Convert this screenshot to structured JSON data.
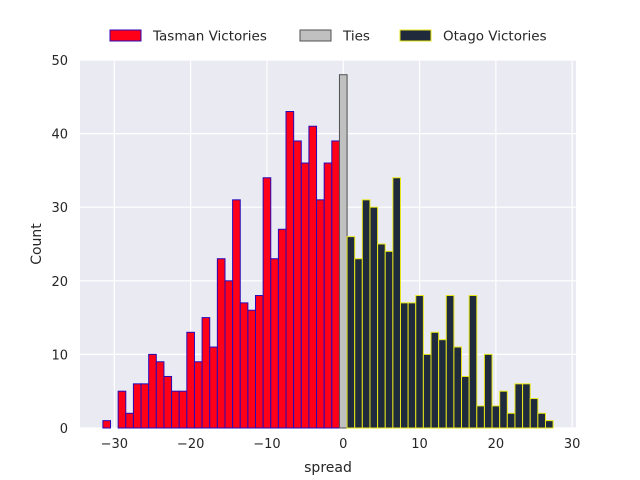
{
  "chart_data": {
    "type": "bar",
    "title": "",
    "xlabel": "spread",
    "ylabel": "Count",
    "xlim": [
      -34.5,
      30.5
    ],
    "ylim": [
      0,
      50
    ],
    "x_ticks": [
      -30,
      -20,
      -10,
      0,
      10,
      20,
      30
    ],
    "y_ticks": [
      0,
      10,
      20,
      30,
      40,
      50
    ],
    "grid": true,
    "legend": {
      "placement": "top-center",
      "columns": 3
    },
    "bin_width": 1,
    "series": [
      {
        "name": "Tasman Victories",
        "fill": "#ff0018",
        "edge": "#2a0ab8",
        "bins": [
          {
            "x": -31,
            "count": 1
          },
          {
            "x": -30,
            "count": 0
          },
          {
            "x": -29,
            "count": 5
          },
          {
            "x": -28,
            "count": 2
          },
          {
            "x": -27,
            "count": 6
          },
          {
            "x": -26,
            "count": 6
          },
          {
            "x": -25,
            "count": 10
          },
          {
            "x": -24,
            "count": 9
          },
          {
            "x": -23,
            "count": 7
          },
          {
            "x": -22,
            "count": 5
          },
          {
            "x": -21,
            "count": 5
          },
          {
            "x": -20,
            "count": 13
          },
          {
            "x": -19,
            "count": 9
          },
          {
            "x": -18,
            "count": 15
          },
          {
            "x": -17,
            "count": 11
          },
          {
            "x": -16,
            "count": 23
          },
          {
            "x": -15,
            "count": 20
          },
          {
            "x": -14,
            "count": 31
          },
          {
            "x": -13,
            "count": 17
          },
          {
            "x": -12,
            "count": 16
          },
          {
            "x": -11,
            "count": 18
          },
          {
            "x": -10,
            "count": 34
          },
          {
            "x": -9,
            "count": 23
          },
          {
            "x": -8,
            "count": 27
          },
          {
            "x": -7,
            "count": 43
          },
          {
            "x": -6,
            "count": 39
          },
          {
            "x": -5,
            "count": 36
          },
          {
            "x": -4,
            "count": 41
          },
          {
            "x": -3,
            "count": 31
          },
          {
            "x": -2,
            "count": 36
          },
          {
            "x": -1,
            "count": 39
          }
        ]
      },
      {
        "name": "Ties",
        "fill": "#c0c0c0",
        "edge": "#505050",
        "bins": [
          {
            "x": 0,
            "count": 48
          }
        ]
      },
      {
        "name": "Otago Victories",
        "fill": "#1f2a3c",
        "edge": "#e6e619",
        "bins": [
          {
            "x": 1,
            "count": 26
          },
          {
            "x": 2,
            "count": 23
          },
          {
            "x": 3,
            "count": 31
          },
          {
            "x": 4,
            "count": 30
          },
          {
            "x": 5,
            "count": 25
          },
          {
            "x": 6,
            "count": 24
          },
          {
            "x": 7,
            "count": 34
          },
          {
            "x": 8,
            "count": 17
          },
          {
            "x": 9,
            "count": 17
          },
          {
            "x": 10,
            "count": 18
          },
          {
            "x": 11,
            "count": 10
          },
          {
            "x": 12,
            "count": 13
          },
          {
            "x": 13,
            "count": 12
          },
          {
            "x": 14,
            "count": 18
          },
          {
            "x": 15,
            "count": 11
          },
          {
            "x": 16,
            "count": 7
          },
          {
            "x": 17,
            "count": 18
          },
          {
            "x": 18,
            "count": 3
          },
          {
            "x": 19,
            "count": 10
          },
          {
            "x": 20,
            "count": 3
          },
          {
            "x": 21,
            "count": 5
          },
          {
            "x": 22,
            "count": 2
          },
          {
            "x": 23,
            "count": 6
          },
          {
            "x": 24,
            "count": 6
          },
          {
            "x": 25,
            "count": 4
          },
          {
            "x": 26,
            "count": 2
          },
          {
            "x": 27,
            "count": 1
          }
        ]
      }
    ]
  }
}
